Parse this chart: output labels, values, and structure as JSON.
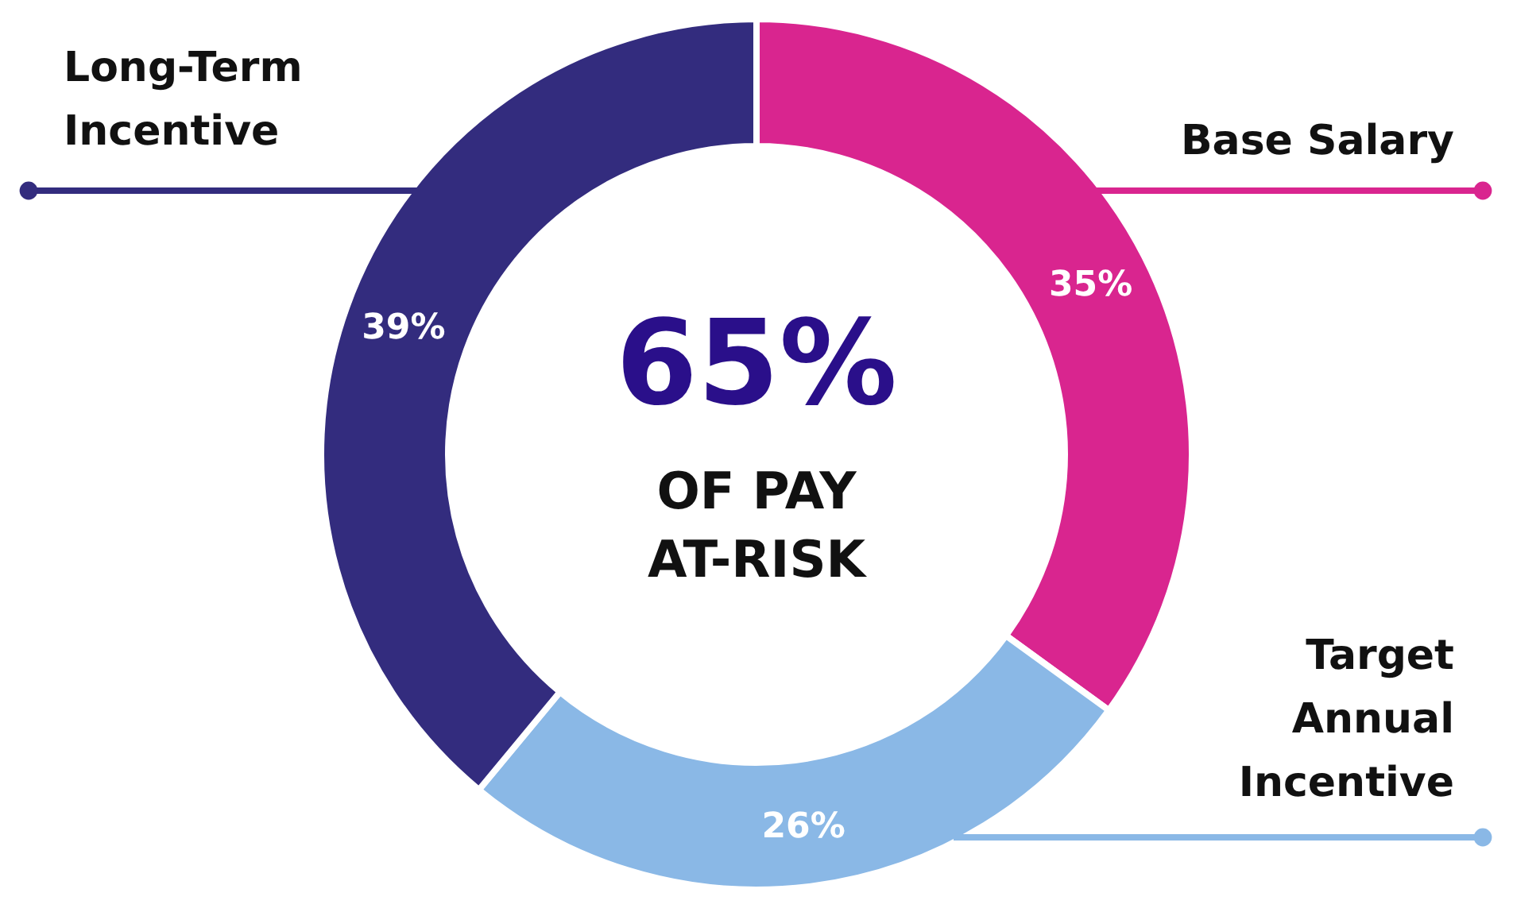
{
  "chart_data": {
    "type": "donut",
    "categories": [
      "Base Salary",
      "Target Annual Incentive",
      "Long-Term Incentive"
    ],
    "values": [
      35,
      26,
      39
    ],
    "colors": [
      "#d9258f",
      "#8ab8e6",
      "#332c7e"
    ],
    "value_labels": [
      "35%",
      "26%",
      "39%"
    ],
    "annotations": [
      "65%",
      "OF PAY",
      "AT-RISK"
    ],
    "legend": false
  }
}
